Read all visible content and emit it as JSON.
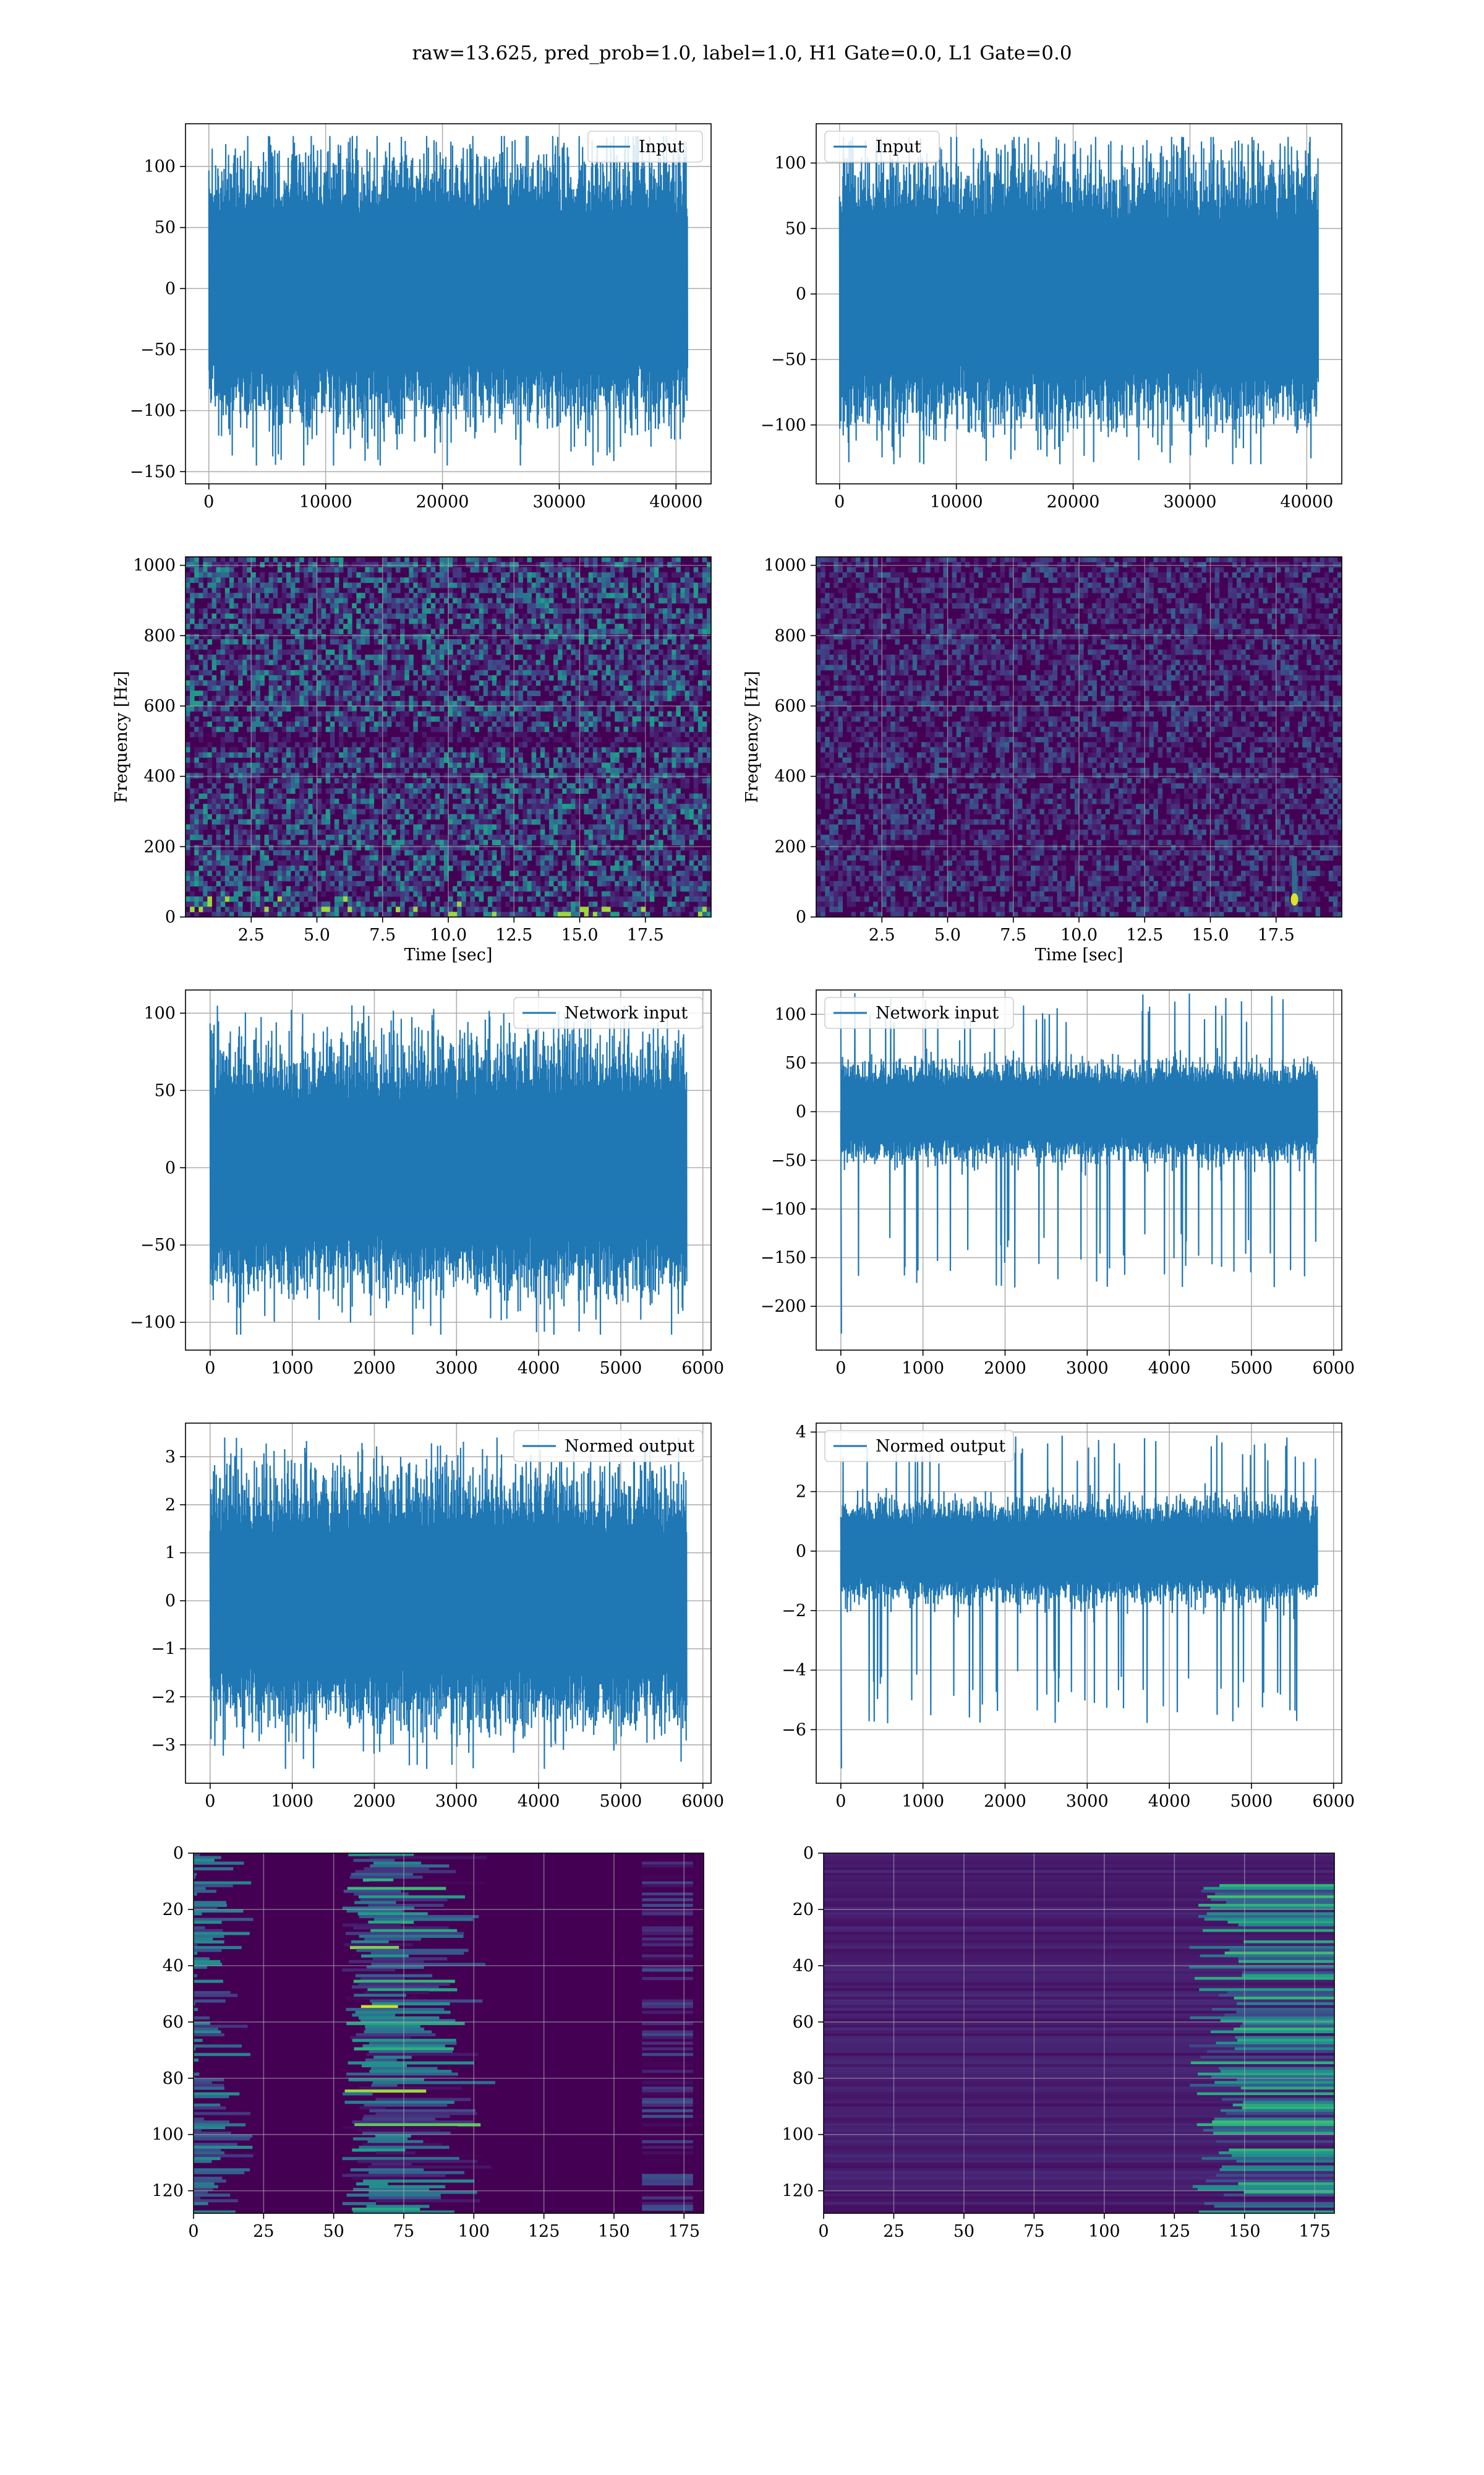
{
  "suptitle": "raw=13.625, pred_prob=1.0, label=1.0, H1 Gate=0.0, L1 Gate=0.0",
  "colors": {
    "line": "#1f77b4",
    "grid": "#b0b0b0",
    "viridis_low": "#440154",
    "viridis_high": "#fde725"
  },
  "chart_data": [
    {
      "id": "h1-input",
      "type": "line",
      "legend": "Input",
      "legend_loc": "upper right",
      "xlim": [
        -2000,
        43000
      ],
      "ylim": [
        -160,
        135
      ],
      "xticks": [
        0,
        10000,
        20000,
        30000,
        40000
      ],
      "yticks": [
        -150,
        -100,
        -50,
        0,
        50,
        100
      ],
      "xlabel": "",
      "ylabel": "",
      "grid": true,
      "series": [
        {
          "n": 40960,
          "envelope_max": 125,
          "envelope_min": -145,
          "core_amplitude": 62
        }
      ]
    },
    {
      "id": "l1-input",
      "type": "line",
      "legend": "Input",
      "legend_loc": "upper left",
      "xlim": [
        -2000,
        43000
      ],
      "ylim": [
        -145,
        130
      ],
      "xticks": [
        0,
        10000,
        20000,
        30000,
        40000
      ],
      "yticks": [
        -100,
        -50,
        0,
        50,
        100
      ],
      "xlabel": "",
      "ylabel": "",
      "grid": true,
      "series": [
        {
          "n": 40960,
          "envelope_max": 120,
          "envelope_min": -130,
          "core_amplitude": 58
        }
      ]
    },
    {
      "id": "h1-spectrogram",
      "type": "heatmap",
      "colormap": "viridis",
      "xlim": [
        0,
        20
      ],
      "ylim": [
        0,
        1024
      ],
      "xticks": [
        2.5,
        5.0,
        7.5,
        10.0,
        12.5,
        15.0,
        17.5
      ],
      "yticks": [
        0,
        200,
        400,
        600,
        800,
        1000
      ],
      "xlabel": "Time [sec]",
      "ylabel": "Frequency [Hz]",
      "grid": true,
      "intensity": 0.35
    },
    {
      "id": "l1-spectrogram",
      "type": "heatmap",
      "colormap": "viridis",
      "xlim": [
        0,
        20
      ],
      "ylim": [
        0,
        1024
      ],
      "xticks": [
        2.5,
        5.0,
        7.5,
        10.0,
        12.5,
        15.0,
        17.5
      ],
      "yticks": [
        0,
        200,
        400,
        600,
        800,
        1000
      ],
      "xlabel": "Time [sec]",
      "ylabel": "Frequency [Hz]",
      "grid": true,
      "intensity": 0.2,
      "hotspot": {
        "time": 18.2,
        "freq": 50
      }
    },
    {
      "id": "h1-network-input",
      "type": "line",
      "legend": "Network input",
      "legend_loc": "upper right",
      "xlim": [
        -300,
        6100
      ],
      "ylim": [
        -118,
        115
      ],
      "xticks": [
        0,
        1000,
        2000,
        3000,
        4000,
        5000,
        6000
      ],
      "yticks": [
        -100,
        -50,
        0,
        50,
        100
      ],
      "xlabel": "",
      "ylabel": "",
      "grid": true,
      "series": [
        {
          "n": 5800,
          "envelope_max": 105,
          "envelope_min": -108,
          "core_amplitude": 45
        }
      ]
    },
    {
      "id": "l1-network-input",
      "type": "line",
      "legend": "Network input",
      "legend_loc": "upper left",
      "xlim": [
        -300,
        6100
      ],
      "ylim": [
        -245,
        125
      ],
      "xticks": [
        0,
        1000,
        2000,
        3000,
        4000,
        5000,
        6000
      ],
      "yticks": [
        -200,
        -150,
        -100,
        -50,
        0,
        50,
        100
      ],
      "xlabel": "",
      "ylabel": "",
      "grid": true,
      "series": [
        {
          "n": 5800,
          "envelope_max": 122,
          "envelope_min": -228,
          "core_amplitude": 28
        }
      ]
    },
    {
      "id": "h1-normed-output",
      "type": "line",
      "legend": "Normed output",
      "legend_loc": "upper right",
      "xlim": [
        -300,
        6100
      ],
      "ylim": [
        -3.8,
        3.7
      ],
      "xticks": [
        0,
        1000,
        2000,
        3000,
        4000,
        5000,
        6000
      ],
      "yticks": [
        -3,
        -2,
        -1,
        0,
        1,
        2,
        3
      ],
      "xlabel": "",
      "ylabel": "",
      "grid": true,
      "series": [
        {
          "n": 5800,
          "envelope_max": 3.4,
          "envelope_min": -3.5,
          "core_amplitude": 1.45
        }
      ]
    },
    {
      "id": "l1-normed-output",
      "type": "line",
      "legend": "Normed output",
      "legend_loc": "upper left",
      "xlim": [
        -300,
        6100
      ],
      "ylim": [
        -7.8,
        4.3
      ],
      "xticks": [
        0,
        1000,
        2000,
        3000,
        4000,
        5000,
        6000
      ],
      "yticks": [
        -6,
        -4,
        -2,
        0,
        2,
        4
      ],
      "xlabel": "",
      "ylabel": "",
      "grid": true,
      "series": [
        {
          "n": 5800,
          "envelope_max": 3.9,
          "envelope_min": -7.3,
          "core_amplitude": 0.95
        }
      ]
    },
    {
      "id": "h1-feature-map",
      "type": "heatmap",
      "colormap": "viridis",
      "xlim": [
        0,
        182
      ],
      "ylim": [
        128,
        0
      ],
      "xticks": [
        0,
        25,
        50,
        75,
        100,
        125,
        150,
        175
      ],
      "yticks": [
        0,
        20,
        40,
        60,
        80,
        100,
        120
      ],
      "xlabel": "",
      "ylabel": "",
      "grid": true,
      "hot_column": 65
    },
    {
      "id": "l1-feature-map",
      "type": "heatmap",
      "colormap": "viridis",
      "xlim": [
        0,
        182
      ],
      "ylim": [
        128,
        0
      ],
      "xticks": [
        0,
        25,
        50,
        75,
        100,
        125,
        150,
        175
      ],
      "yticks": [
        0,
        20,
        40,
        60,
        80,
        100,
        120
      ],
      "xlabel": "",
      "ylabel": "",
      "grid": true,
      "hot_column": 175
    }
  ]
}
